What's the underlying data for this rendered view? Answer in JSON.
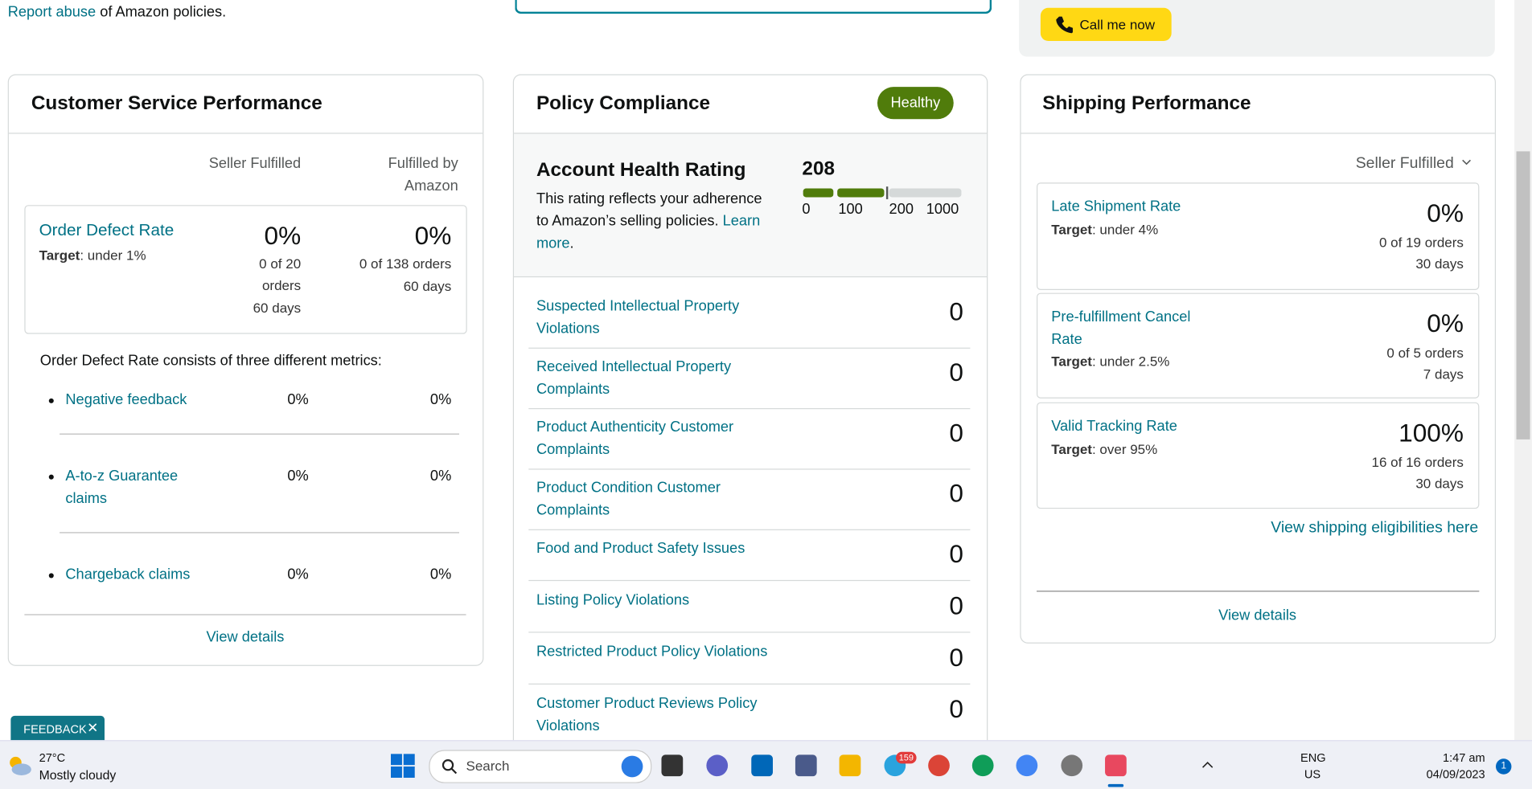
{
  "top": {
    "report_abuse_link": "Report abuse",
    "report_abuse_text": "of Amazon policies.",
    "call_button": "Call me now"
  },
  "customer_service": {
    "title": "Customer Service Performance",
    "col1": "Seller Fulfilled",
    "col2": "Fulfilled by Amazon",
    "odr": {
      "name": "Order Defect Rate",
      "target_label": "Target",
      "target": ": under 1%",
      "v1": "0%",
      "d1": "0 of 20 orders",
      "p1": "60 days",
      "v2": "0%",
      "d2": "0 of 138 orders",
      "p2": "60 days"
    },
    "note": "Order Defect Rate consists of three different metrics:",
    "metrics": [
      {
        "name": "Negative feedback",
        "v1": "0%",
        "v2": "0%"
      },
      {
        "name": "A-to-z Guarantee claims",
        "v1": "0%",
        "v2": "0%"
      },
      {
        "name": "Chargeback claims",
        "v1": "0%",
        "v2": "0%"
      }
    ],
    "view_details": "View details"
  },
  "policy": {
    "title": "Policy Compliance",
    "badge": "Healthy",
    "rating_title": "Account Health Rating",
    "rating_value": "208",
    "description": "This rating reflects your adherence to Amazon’s selling policies.",
    "learn_more": "Learn more",
    "period": ".",
    "scale": [
      "0",
      "100",
      "200",
      "1000"
    ],
    "items": [
      {
        "label": "Suspected Intellectual Property Violations",
        "count": "0"
      },
      {
        "label": "Received Intellectual Property Complaints",
        "count": "0"
      },
      {
        "label": "Product Authenticity Customer Complaints",
        "count": "0"
      },
      {
        "label": "Product Condition Customer Complaints",
        "count": "0"
      },
      {
        "label": "Food and Product Safety Issues",
        "count": "0"
      },
      {
        "label": "Listing Policy Violations",
        "count": "0"
      },
      {
        "label": "Restricted Product Policy Violations",
        "count": "0"
      },
      {
        "label": "Customer Product Reviews Policy Violations",
        "count": "0"
      }
    ]
  },
  "shipping": {
    "title": "Shipping Performance",
    "filter": "Seller Fulfilled",
    "metrics": [
      {
        "name": "Late Shipment Rate",
        "target_label": "Target",
        "target": ": under 4%",
        "value": "0%",
        "detail": "0 of 19 orders",
        "period": "30 days"
      },
      {
        "name": "Pre-fulfillment Cancel Rate",
        "target_label": "Target",
        "target": ": under 2.5%",
        "value": "0%",
        "detail": "0 of 5 orders",
        "period": "7 days"
      },
      {
        "name": "Valid Tracking Rate",
        "target_label": "Target",
        "target": ": over 95%",
        "value": "100%",
        "detail": "16 of 16 orders",
        "period": "30 days"
      }
    ],
    "eligibilities": "View shipping eligibilities here",
    "view_details": "View details"
  },
  "feedback": "FEEDBACK",
  "taskbar": {
    "temp": "27°C",
    "weather": "Mostly cloudy",
    "search": "Search",
    "telegram_badge": "159",
    "lang": "ENG",
    "region": "US",
    "time": "1:47 am",
    "date": "04/09/2023",
    "notifications": "1"
  }
}
